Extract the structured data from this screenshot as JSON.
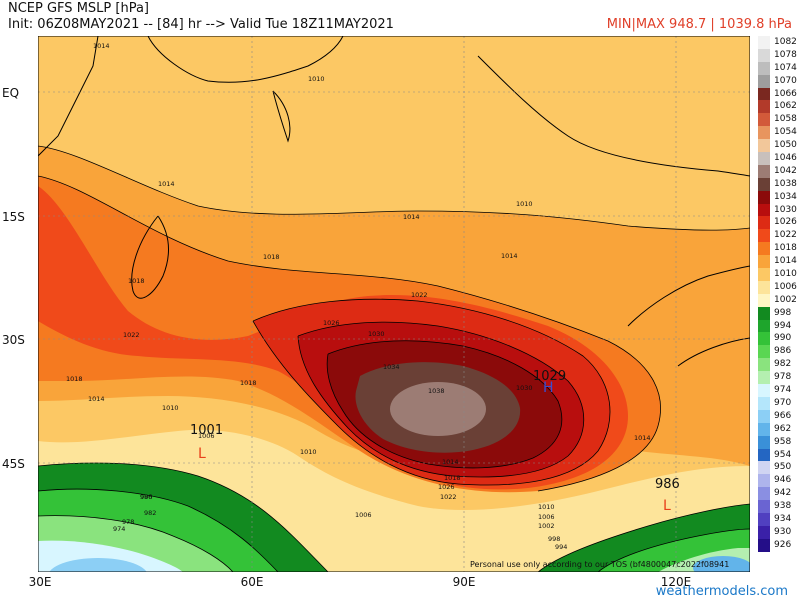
{
  "header": {
    "title": "NCEP GFS MSLP [hPa]",
    "init": "Init: 06Z08MAY2021 -- [84] hr --> Valid Tue 18Z11MAY2021",
    "minmax": "MIN|MAX 948.7 | 1039.8 hPa"
  },
  "lat_labels": [
    "EQ",
    "15S",
    "30S",
    "45S"
  ],
  "lon_labels": [
    "30E",
    "60E",
    "90E",
    "120E"
  ],
  "pressure_labels": {
    "high_value": "1029",
    "high_letter": "H",
    "low1_value": "1001",
    "low1_letter": "L",
    "low2_value": "986",
    "low2_letter": "L"
  },
  "isobar_labels": [
    "1014",
    "1010",
    "1014",
    "1010",
    "1014",
    "1018",
    "1014",
    "1018",
    "1022",
    "1026",
    "1030",
    "1034",
    "1038",
    "1022",
    "1018",
    "1018",
    "1014",
    "1010",
    "1006",
    "1010",
    "1014",
    "1018",
    "1022",
    "1026",
    "1030",
    "1010",
    "1006",
    "1002",
    "998",
    "994",
    "990",
    "986",
    "982",
    "978",
    "974",
    "1006",
    "1014"
  ],
  "disclaimer": "Personal use only according to our TOS (bf4800047c2022f08941",
  "credit": "weathermodels.com",
  "legend": [
    {
      "v": "1082",
      "c": "#f2f2f2"
    },
    {
      "v": "1078",
      "c": "#d9d9d9"
    },
    {
      "v": "1074",
      "c": "#bdbdbd"
    },
    {
      "v": "1070",
      "c": "#9e9e9e"
    },
    {
      "v": "1066",
      "c": "#7a2820"
    },
    {
      "v": "1062",
      "c": "#b23a2a"
    },
    {
      "v": "1058",
      "c": "#d25a3a"
    },
    {
      "v": "1054",
      "c": "#e8955e"
    },
    {
      "v": "1050",
      "c": "#f2c79a"
    },
    {
      "v": "1046",
      "c": "#c8c0bc"
    },
    {
      "v": "1042",
      "c": "#9c7c74"
    },
    {
      "v": "1038",
      "c": "#6a4036"
    },
    {
      "v": "1034",
      "c": "#8b0a0a"
    },
    {
      "v": "1030",
      "c": "#b80e0e"
    },
    {
      "v": "1026",
      "c": "#dd2b14"
    },
    {
      "v": "1022",
      "c": "#f04a1a"
    },
    {
      "v": "1018",
      "c": "#f57a20"
    },
    {
      "v": "1014",
      "c": "#f9a43a"
    },
    {
      "v": "1010",
      "c": "#fcc864"
    },
    {
      "v": "1006",
      "c": "#fde49a"
    },
    {
      "v": "1002",
      "c": "#fff6c4"
    },
    {
      "v": "998",
      "c": "#128a20"
    },
    {
      "v": "994",
      "c": "#1ea52c"
    },
    {
      "v": "990",
      "c": "#34c238"
    },
    {
      "v": "986",
      "c": "#5ad652"
    },
    {
      "v": "982",
      "c": "#8ae37e"
    },
    {
      "v": "978",
      "c": "#b4efb0"
    },
    {
      "v": "974",
      "c": "#d8f6ff"
    },
    {
      "v": "970",
      "c": "#b4e6fb"
    },
    {
      "v": "966",
      "c": "#8ccff5"
    },
    {
      "v": "962",
      "c": "#62b4ea"
    },
    {
      "v": "958",
      "c": "#3a90d8"
    },
    {
      "v": "954",
      "c": "#2466c2"
    },
    {
      "v": "950",
      "c": "#d0d4f2"
    },
    {
      "v": "946",
      "c": "#aeb4ec"
    },
    {
      "v": "942",
      "c": "#8a8fe2"
    },
    {
      "v": "938",
      "c": "#6a64d2"
    },
    {
      "v": "934",
      "c": "#5040c0"
    },
    {
      "v": "930",
      "c": "#3a20a8"
    },
    {
      "v": "926",
      "c": "#240e88"
    }
  ]
}
